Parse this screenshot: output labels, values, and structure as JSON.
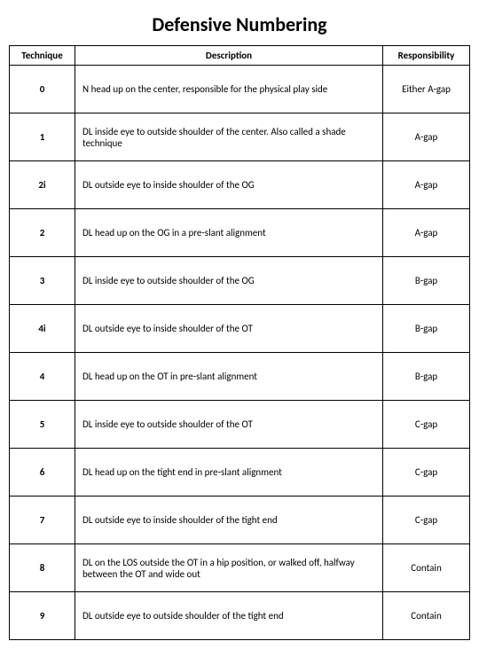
{
  "title": "Defensive Numbering",
  "table": {
    "type": "table",
    "columns": [
      "Technique",
      "Description",
      "Responsibility"
    ],
    "rows": [
      {
        "technique": "0",
        "description": "N head up on the center, responsible for the physical play side",
        "responsibility": "Either A-gap"
      },
      {
        "technique": "1",
        "description": "DL inside eye to outside shoulder of the center. Also called a shade technique",
        "responsibility": "A-gap"
      },
      {
        "technique": "2i",
        "description": "DL outside eye to inside shoulder of the OG",
        "responsibility": "A-gap"
      },
      {
        "technique": "2",
        "description": "DL head up on the OG in a pre-slant alignment",
        "responsibility": "A-gap"
      },
      {
        "technique": "3",
        "description": "DL inside eye to outside shoulder of the OG",
        "responsibility": "B-gap"
      },
      {
        "technique": "4i",
        "description": "DL outside eye to inside shoulder of the OT",
        "responsibility": "B-gap"
      },
      {
        "technique": "4",
        "description": "DL head up on the OT in pre-slant alignment",
        "responsibility": "B-gap"
      },
      {
        "technique": "5",
        "description": "DL inside eye to outside shoulder of the OT",
        "responsibility": "C-gap"
      },
      {
        "technique": "6",
        "description": "DL head up on the tight end in pre-slant alignment",
        "responsibility": "C-gap"
      },
      {
        "technique": "7",
        "description": "DL outside eye to inside shoulder of the tight end",
        "responsibility": "C-gap"
      },
      {
        "technique": "8",
        "description": "DL on the LOS outside the OT in a hip position, or walked off, halfway between the OT and wide out",
        "responsibility": "Contain"
      },
      {
        "technique": "9",
        "description": "DL outside eye to outside shoulder of the tight end",
        "responsibility": "Contain"
      }
    ]
  }
}
